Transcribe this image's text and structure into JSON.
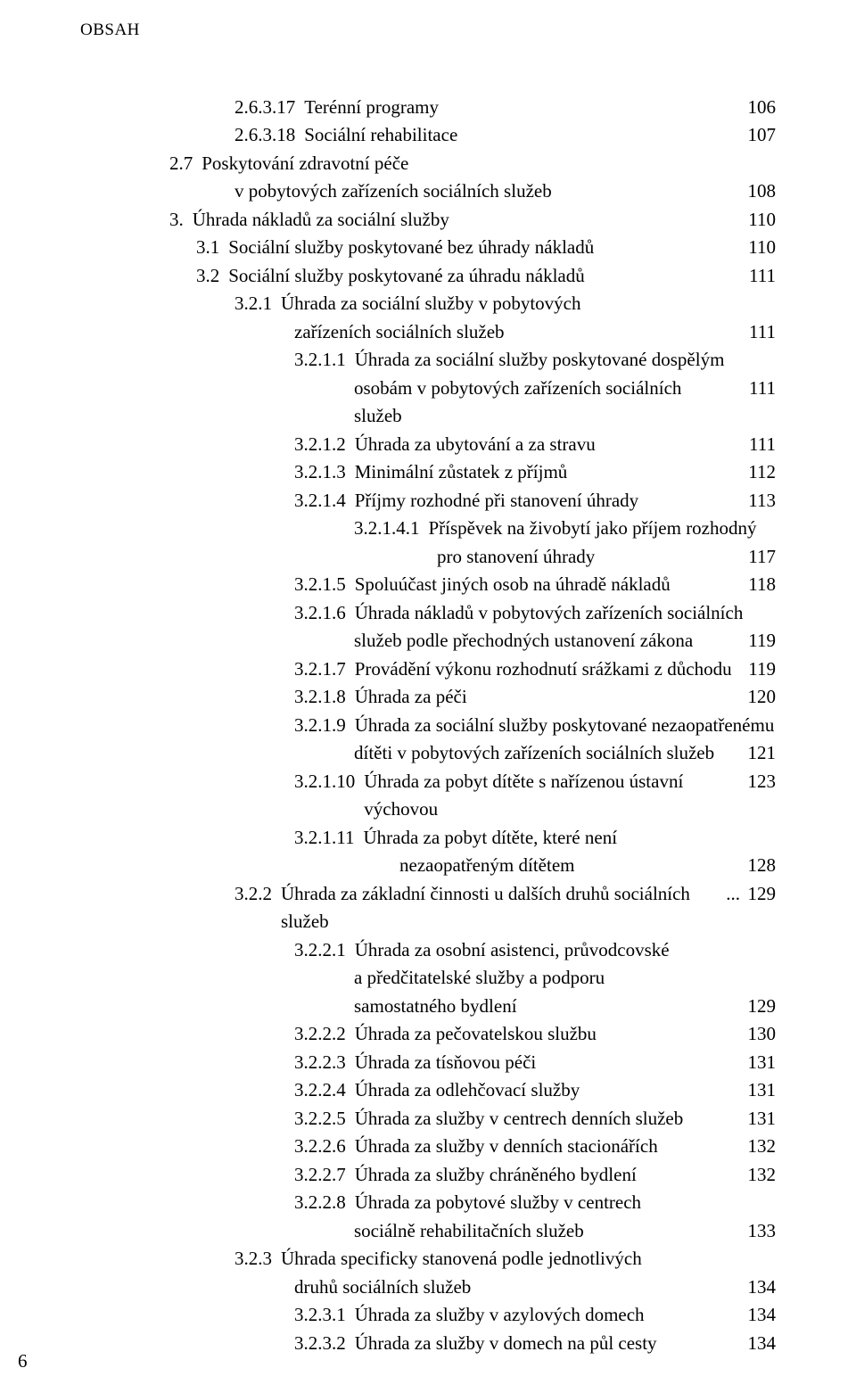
{
  "header": "OBSAH",
  "pageNumber": "6",
  "indents": {
    "l0": 100,
    "l1": 130,
    "l1cont": 173,
    "l2": 173,
    "l2cont": 240,
    "l3": 240,
    "l3cont": 307,
    "l4": 307,
    "l4cont": 400,
    "l5": 358
  },
  "entries": [
    {
      "indent": "l2",
      "num": "2.6.3.17",
      "label": "Terénní programy",
      "page": "106"
    },
    {
      "indent": "l2",
      "num": "2.6.3.18",
      "label": "Sociální rehabilitace",
      "page": "107"
    },
    {
      "indent": "l0",
      "num": "2.7",
      "label": "Poskytování zdravotní péče",
      "nowrap": true
    },
    {
      "contIndent": "l1cont",
      "label": "v pobytových zařízeních sociálních služeb",
      "page": "108"
    },
    {
      "indent": "l0",
      "num": "3.",
      "label": "Úhrada nákladů za sociální služby",
      "page": "110"
    },
    {
      "indent": "l1",
      "num": "3.1",
      "label": "Sociální služby poskytované bez úhrady nákladů",
      "page": "110"
    },
    {
      "indent": "l1",
      "num": "3.2",
      "label": "Sociální služby poskytované za úhradu nákladů",
      "page": "111"
    },
    {
      "indent": "l2",
      "num": "3.2.1",
      "label": "Úhrada za sociální služby v pobytových",
      "nowrap": true
    },
    {
      "contIndent": "l2cont",
      "label": "zařízeních sociálních služeb",
      "page": "111"
    },
    {
      "indent": "l3",
      "num": "3.2.1.1",
      "label": "Úhrada za sociální služby poskytované dospělým",
      "nowrap": true
    },
    {
      "contIndent": "l3cont",
      "label": "osobám v pobytových zařízeních sociálních služeb",
      "page": "111"
    },
    {
      "indent": "l3",
      "num": "3.2.1.2",
      "label": "Úhrada za ubytování a za stravu",
      "page": "111"
    },
    {
      "indent": "l3",
      "num": "3.2.1.3",
      "label": "Minimální zůstatek z příjmů",
      "page": "112"
    },
    {
      "indent": "l3",
      "num": "3.2.1.4",
      "label": "Příjmy rozhodné při stanovení úhrady",
      "page": "113"
    },
    {
      "indent": "l4",
      "num": "3.2.1.4.1",
      "label": "Příspěvek na živobytí jako příjem rozhodný",
      "nowrap": true
    },
    {
      "contIndent": "l4cont",
      "label": "pro stanovení úhrady",
      "page": "117"
    },
    {
      "indent": "l3",
      "num": "3.2.1.5",
      "label": "Spoluúčast jiných osob na úhradě nákladů",
      "page": "118"
    },
    {
      "indent": "l3",
      "num": "3.2.1.6",
      "label": "Úhrada nákladů v pobytových zařízeních sociálních",
      "nowrap": true
    },
    {
      "contIndent": "l3cont",
      "label": "služeb podle přechodných ustanovení zákona",
      "page": "119"
    },
    {
      "indent": "l3",
      "num": "3.2.1.7",
      "label": "Provádění výkonu rozhodnutí srážkami z důchodu",
      "page": "119"
    },
    {
      "indent": "l3",
      "num": "3.2.1.8",
      "label": "Úhrada za péči",
      "page": "120"
    },
    {
      "indent": "l3",
      "num": "3.2.1.9",
      "label": "Úhrada za sociální služby poskytované nezaopatřenému",
      "nowrap": true
    },
    {
      "contIndent": "l3cont",
      "label": "dítěti v pobytových zařízeních sociálních služeb",
      "page": "121"
    },
    {
      "indent": "l3",
      "num": "3.2.1.10",
      "label": "Úhrada za pobyt dítěte s nařízenou ústavní výchovou",
      "page": "123"
    },
    {
      "indent": "l3",
      "num": "3.2.1.11",
      "label": "Úhrada za pobyt dítěte, které není",
      "nowrap": true
    },
    {
      "contIndent": "l5",
      "label": "nezaopatřeným dítětem",
      "page": "128"
    },
    {
      "indent": "l2",
      "num": "3.2.2",
      "label": "Úhrada za základní činnosti u dalších druhů sociálních služeb",
      "page": "129",
      "spaceLeader": true
    },
    {
      "indent": "l3",
      "num": "3.2.2.1",
      "label": "Úhrada za osobní asistenci, průvodcovské",
      "nowrap": true
    },
    {
      "contIndent": "l3cont",
      "label": "a předčitatelské služby a podporu",
      "noleader": true
    },
    {
      "contIndent": "l3cont",
      "label": "samostatného bydlení",
      "page": "129"
    },
    {
      "indent": "l3",
      "num": "3.2.2.2",
      "label": "Úhrada za pečovatelskou službu",
      "page": "130"
    },
    {
      "indent": "l3",
      "num": "3.2.2.3",
      "label": "Úhrada za tísňovou péči",
      "page": "131"
    },
    {
      "indent": "l3",
      "num": "3.2.2.4",
      "label": "Úhrada za odlehčovací služby",
      "page": "131"
    },
    {
      "indent": "l3",
      "num": "3.2.2.5",
      "label": "Úhrada za služby v centrech denních služeb",
      "page": "131"
    },
    {
      "indent": "l3",
      "num": "3.2.2.6",
      "label": "Úhrada za služby v denních stacionářích",
      "page": "132"
    },
    {
      "indent": "l3",
      "num": "3.2.2.7",
      "label": "Úhrada za služby chráněného bydlení",
      "page": "132"
    },
    {
      "indent": "l3",
      "num": "3.2.2.8",
      "label": "Úhrada za pobytové služby v centrech",
      "nowrap": true
    },
    {
      "contIndent": "l3cont",
      "label": "sociálně rehabilitačních služeb",
      "page": "133"
    },
    {
      "indent": "l2",
      "num": "3.2.3",
      "label": "Úhrada specificky stanovená podle jednotlivých",
      "nowrap": true
    },
    {
      "contIndent": "l2cont",
      "label": "druhů sociálních služeb",
      "page": "134"
    },
    {
      "indent": "l3",
      "num": "3.2.3.1",
      "label": "Úhrada za služby v azylových domech",
      "page": "134"
    },
    {
      "indent": "l3",
      "num": "3.2.3.2",
      "label": "Úhrada za služby v domech na půl cesty",
      "page": "134"
    }
  ]
}
